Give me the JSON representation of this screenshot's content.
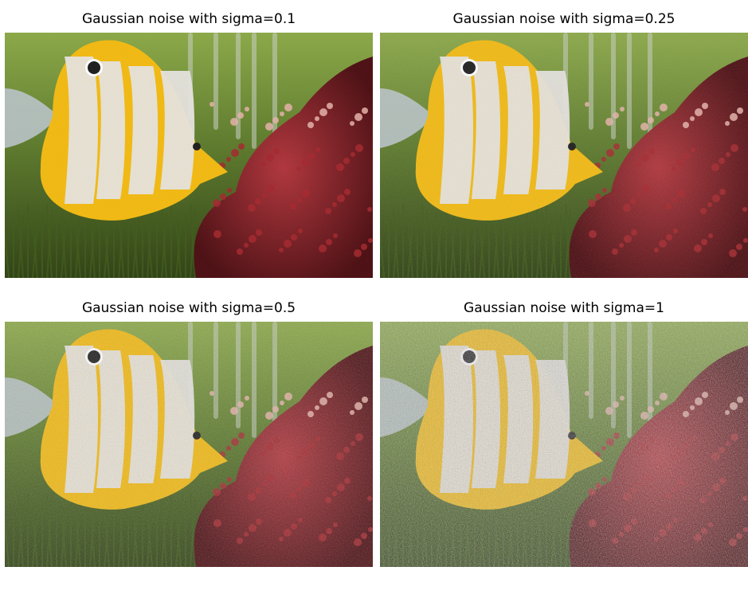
{
  "panels": [
    {
      "title": "Gaussian noise with sigma=0.1",
      "sigma": 0.1
    },
    {
      "title": "Gaussian noise with sigma=0.25",
      "sigma": 0.25
    },
    {
      "title": "Gaussian noise with sigma=0.5",
      "sigma": 0.5
    },
    {
      "title": "Gaussian noise with sigma=1",
      "sigma": 1
    }
  ],
  "scene": {
    "subject": "butterflyfish with yellow and white stripes",
    "colors": {
      "fish_yellow": "#f2b90f",
      "fish_white": "#e6e3de",
      "coral_red": "#8f1a1f",
      "background_green": "#5c7a2a",
      "grass_dark": "#2d3f12",
      "fin_grey": "#b9c3c8"
    }
  }
}
